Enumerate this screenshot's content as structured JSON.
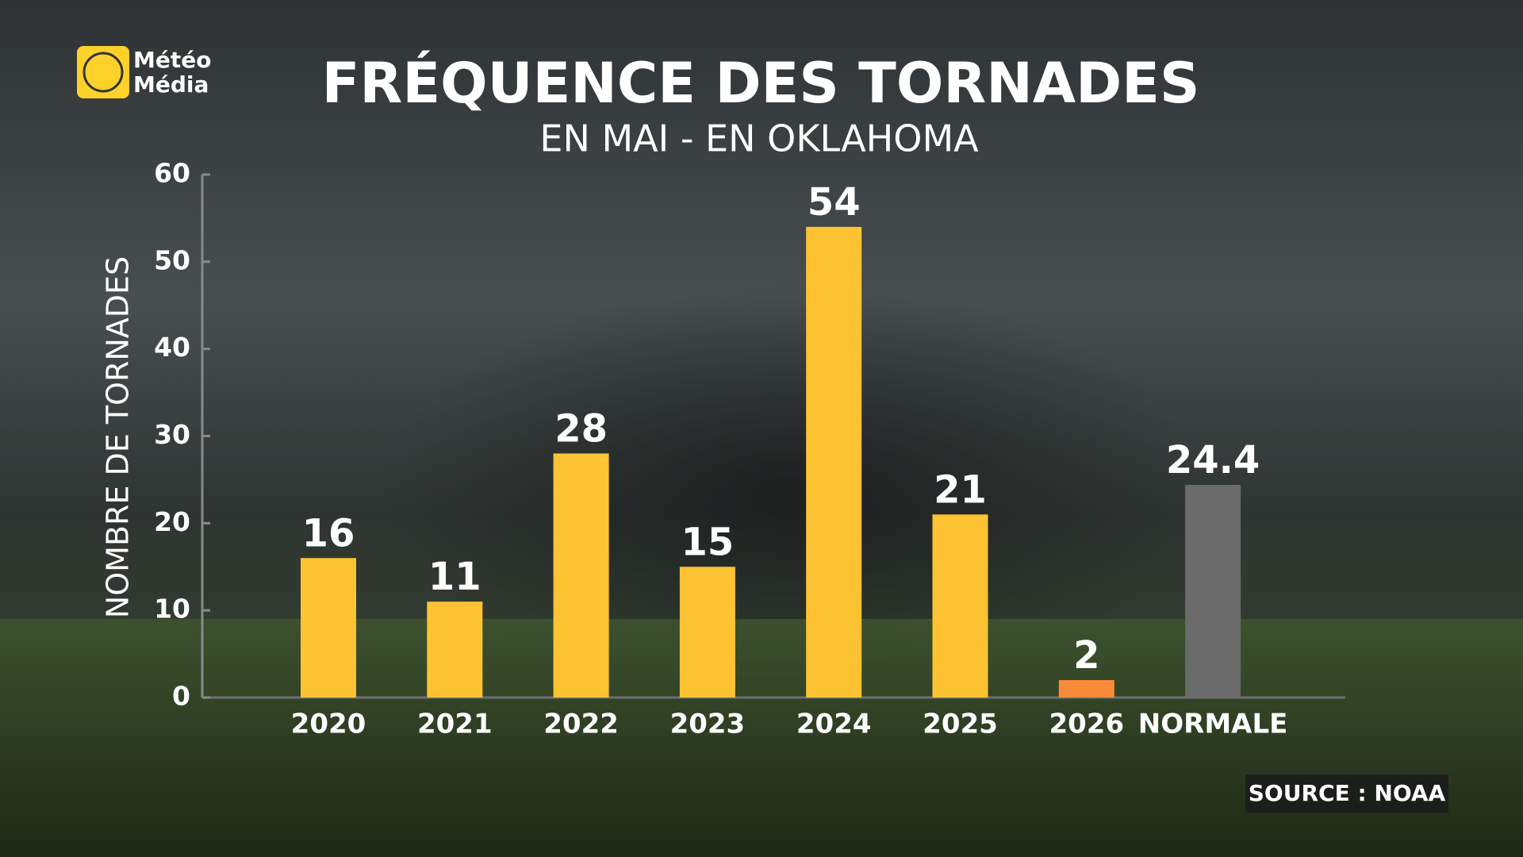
{
  "brand": {
    "line1": "Météo",
    "line2": "Média"
  },
  "chart_data": {
    "type": "bar",
    "title": "FRÉQUENCE DES TORNADES",
    "subtitle": "EN MAI - EN OKLAHOMA",
    "y_label": "NOMBRE DE TORNADES",
    "source": "SOURCE : NOAA",
    "categories": [
      "2020",
      "2021",
      "2022",
      "2023",
      "2024",
      "2025",
      "2026",
      "NORMALE"
    ],
    "values": [
      16,
      11,
      28,
      15,
      54,
      21,
      2,
      24.4
    ],
    "colors": [
      "#fec332",
      "#fec332",
      "#fec332",
      "#fec332",
      "#fec332",
      "#fec332",
      "#f98b3a",
      "#6b6b6b"
    ],
    "ylim": [
      0,
      60
    ],
    "yticks": [
      0,
      10,
      20,
      30,
      40,
      50,
      60
    ],
    "grid": false
  }
}
